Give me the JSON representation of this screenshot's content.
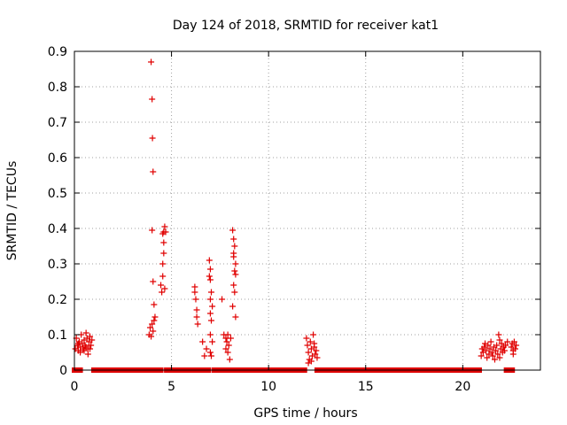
{
  "chart_data": {
    "type": "scatter",
    "title": "Day 124 of 2018, SRMTID for receiver kat1",
    "xlabel": "GPS time / hours",
    "ylabel": "SRMTID / TECUs",
    "xlim": [
      0,
      24
    ],
    "ylim": [
      0,
      0.9
    ],
    "xticks": [
      0,
      5,
      10,
      15,
      20
    ],
    "yticks": [
      0,
      0.1,
      0.2,
      0.3,
      0.4,
      0.5,
      0.6,
      0.7,
      0.8,
      0.9
    ],
    "grid": true,
    "marker": "+",
    "color": "#e00000",
    "series": [
      {
        "name": "SRMTID",
        "points": [
          [
            0.05,
            0.06
          ],
          [
            0.1,
            0.09
          ],
          [
            0.15,
            0.07
          ],
          [
            0.2,
            0.055
          ],
          [
            0.25,
            0.08
          ],
          [
            0.3,
            0.065
          ],
          [
            0.35,
            0.1
          ],
          [
            0.4,
            0.075
          ],
          [
            0.45,
            0.06
          ],
          [
            0.5,
            0.085
          ],
          [
            0.55,
            0.07
          ],
          [
            0.6,
            0.105
          ],
          [
            0.65,
            0.09
          ],
          [
            0.7,
            0.06
          ],
          [
            0.75,
            0.08
          ],
          [
            0.8,
            0.095
          ],
          [
            0.85,
            0.07
          ],
          [
            0.9,
            0.085
          ],
          [
            0.3,
            0.05
          ],
          [
            0.5,
            0.055
          ],
          [
            0.7,
            0.045
          ],
          [
            0.2,
            0.075
          ],
          [
            0.6,
            0.065
          ],
          [
            0.8,
            0.06
          ],
          [
            3.85,
            0.1
          ],
          [
            3.9,
            0.12
          ],
          [
            3.95,
            0.095
          ],
          [
            4.0,
            0.13
          ],
          [
            4.05,
            0.11
          ],
          [
            3.95,
            0.87
          ],
          [
            4.0,
            0.765
          ],
          [
            4.02,
            0.655
          ],
          [
            4.05,
            0.56
          ],
          [
            4.0,
            0.395
          ],
          [
            4.05,
            0.25
          ],
          [
            4.1,
            0.185
          ],
          [
            4.15,
            0.15
          ],
          [
            4.1,
            0.14
          ],
          [
            4.45,
            0.24
          ],
          [
            4.5,
            0.22
          ],
          [
            4.55,
            0.265
          ],
          [
            4.55,
            0.3
          ],
          [
            4.6,
            0.33
          ],
          [
            4.6,
            0.36
          ],
          [
            4.6,
            0.39
          ],
          [
            4.65,
            0.405
          ],
          [
            4.55,
            0.385
          ],
          [
            4.7,
            0.39
          ],
          [
            4.65,
            0.23
          ],
          [
            6.2,
            0.235
          ],
          [
            6.25,
            0.2
          ],
          [
            6.3,
            0.17
          ],
          [
            6.3,
            0.15
          ],
          [
            6.35,
            0.13
          ],
          [
            6.2,
            0.22
          ],
          [
            6.6,
            0.08
          ],
          [
            6.7,
            0.04
          ],
          [
            6.8,
            0.06
          ],
          [
            6.95,
            0.31
          ],
          [
            7.0,
            0.285
          ],
          [
            6.95,
            0.265
          ],
          [
            7.0,
            0.255
          ],
          [
            7.05,
            0.22
          ],
          [
            7.0,
            0.2
          ],
          [
            7.1,
            0.18
          ],
          [
            7.0,
            0.16
          ],
          [
            7.05,
            0.14
          ],
          [
            7.0,
            0.1
          ],
          [
            7.1,
            0.08
          ],
          [
            7.0,
            0.05
          ],
          [
            7.05,
            0.04
          ],
          [
            7.6,
            0.2
          ],
          [
            7.7,
            0.1
          ],
          [
            7.8,
            0.09
          ],
          [
            7.85,
            0.08
          ],
          [
            7.9,
            0.1
          ],
          [
            7.95,
            0.07
          ],
          [
            7.9,
            0.05
          ],
          [
            8.0,
            0.03
          ],
          [
            7.8,
            0.06
          ],
          [
            8.05,
            0.09
          ],
          [
            8.15,
            0.395
          ],
          [
            8.2,
            0.37
          ],
          [
            8.25,
            0.35
          ],
          [
            8.2,
            0.32
          ],
          [
            8.25,
            0.28
          ],
          [
            8.3,
            0.27
          ],
          [
            8.2,
            0.24
          ],
          [
            8.25,
            0.22
          ],
          [
            8.15,
            0.18
          ],
          [
            8.3,
            0.15
          ],
          [
            8.2,
            0.33
          ],
          [
            8.3,
            0.3
          ],
          [
            11.95,
            0.09
          ],
          [
            12.0,
            0.07
          ],
          [
            12.05,
            0.05
          ],
          [
            12.1,
            0.03
          ],
          [
            12.15,
            0.08
          ],
          [
            12.2,
            0.06
          ],
          [
            12.25,
            0.04
          ],
          [
            12.3,
            0.1
          ],
          [
            12.35,
            0.065
          ],
          [
            12.4,
            0.045
          ],
          [
            12.45,
            0.055
          ],
          [
            12.5,
            0.035
          ],
          [
            12.05,
            0.02
          ],
          [
            12.2,
            0.025
          ],
          [
            12.35,
            0.075
          ],
          [
            20.95,
            0.04
          ],
          [
            21.0,
            0.06
          ],
          [
            21.05,
            0.05
          ],
          [
            21.1,
            0.065
          ],
          [
            21.15,
            0.075
          ],
          [
            21.2,
            0.055
          ],
          [
            21.3,
            0.07
          ],
          [
            21.35,
            0.045
          ],
          [
            21.4,
            0.06
          ],
          [
            21.45,
            0.08
          ],
          [
            21.5,
            0.05
          ],
          [
            21.55,
            0.04
          ],
          [
            21.6,
            0.065
          ],
          [
            21.7,
            0.055
          ],
          [
            21.75,
            0.07
          ],
          [
            21.8,
            0.045
          ],
          [
            21.85,
            0.1
          ],
          [
            21.9,
            0.085
          ],
          [
            21.95,
            0.06
          ],
          [
            22.0,
            0.075
          ],
          [
            22.05,
            0.05
          ],
          [
            22.1,
            0.065
          ],
          [
            22.15,
            0.055
          ],
          [
            22.2,
            0.07
          ],
          [
            22.3,
            0.08
          ],
          [
            21.9,
            0.035
          ],
          [
            21.65,
            0.03
          ],
          [
            21.25,
            0.035
          ],
          [
            22.5,
            0.065
          ],
          [
            22.55,
            0.075
          ],
          [
            22.6,
            0.055
          ],
          [
            22.65,
            0.08
          ],
          [
            22.7,
            0.06
          ],
          [
            22.75,
            0.07
          ],
          [
            22.6,
            0.045
          ]
        ],
        "zero_segments": [
          [
            0.0,
            0.3
          ],
          [
            1.0,
            3.85
          ],
          [
            4.1,
            4.45
          ],
          [
            4.75,
            6.2
          ],
          [
            6.4,
            6.9
          ],
          [
            7.2,
            7.75
          ],
          [
            8.0,
            8.1
          ],
          [
            8.35,
            11.85
          ],
          [
            12.5,
            20.85
          ],
          [
            22.25,
            22.55
          ]
        ]
      }
    ]
  }
}
